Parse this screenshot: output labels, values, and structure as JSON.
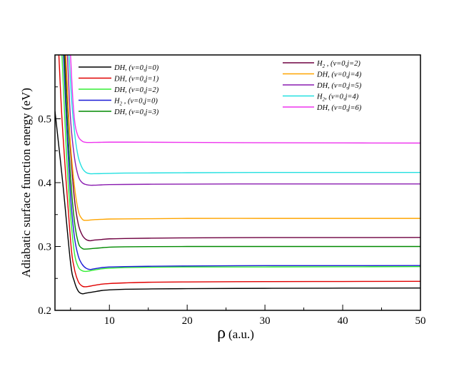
{
  "chart_data": {
    "type": "line",
    "xlabel_symbol": "ρ",
    "xlabel_unit": "(a.u.)",
    "ylabel": "Adiabatic surface function energy (eV)",
    "xlim": [
      3,
      50
    ],
    "ylim": [
      0.2,
      0.6
    ],
    "xticks": [
      10,
      20,
      30,
      40,
      50
    ],
    "xtick_labels": [
      "10",
      "20",
      "30",
      "40",
      "50"
    ],
    "yticks": [
      0.2,
      0.3,
      0.4,
      0.5
    ],
    "ytick_labels": [
      "0.2",
      "0.3",
      "0.4",
      "0.5"
    ],
    "grid": false,
    "legend_left": [
      {
        "prefix": "DH, ",
        "state": "(v=0,j=0)",
        "color": "#000000"
      },
      {
        "prefix": "DH, ",
        "state": "(v=0,j=1)",
        "color": "#e00000"
      },
      {
        "prefix": "DH, ",
        "state": "(v=0,j=2)",
        "color": "#33ee33"
      },
      {
        "prefix": "H",
        "sub": "2",
        "state": " , (v=0,j=0)",
        "color": "#1a1ad6"
      },
      {
        "prefix": "DH, ",
        "state": "(v=0,j=3)",
        "color": "#008a00"
      }
    ],
    "legend_right": [
      {
        "prefix": "H",
        "sub": "2",
        "state": " , (v=0,j=2)",
        "color": "#6e0040"
      },
      {
        "prefix": "DH, ",
        "state": "(v=0,j=4)",
        "color": "#ffa500"
      },
      {
        "prefix": "DH, ",
        "state": "(v=0,j=5)",
        "color": "#8a1cb0"
      },
      {
        "prefix": "H",
        "sub": "2",
        "state": ", (v=0,j=4)",
        "color": "#22e0e0"
      },
      {
        "prefix": "DH, ",
        "state": "(v=0,j=6)",
        "color": "#ee33ee"
      }
    ],
    "series": [
      {
        "name": "DH, (v=0,j=0)",
        "color": "#000000",
        "x": [
          3.0,
          4.0,
          5.0,
          5.5,
          6.0,
          6.5,
          7.0,
          8.0,
          9.0,
          10,
          12,
          15,
          20,
          30,
          40,
          50
        ],
        "y": [
          0.512,
          0.4,
          0.275,
          0.245,
          0.23,
          0.226,
          0.227,
          0.229,
          0.231,
          0.232,
          0.233,
          0.2335,
          0.234,
          0.2345,
          0.2348,
          0.235
        ]
      },
      {
        "name": "DH, (v=0,j=1)",
        "color": "#e00000",
        "x": [
          3.5,
          4.0,
          5.0,
          5.5,
          6.0,
          6.5,
          7.0,
          8.0,
          9.0,
          10,
          12,
          15,
          20,
          30,
          40,
          50
        ],
        "y": [
          0.6,
          0.48,
          0.31,
          0.265,
          0.245,
          0.238,
          0.237,
          0.239,
          0.241,
          0.242,
          0.243,
          0.244,
          0.2445,
          0.245,
          0.2452,
          0.2455
        ]
      },
      {
        "name": "DH, (v=0,j=2)",
        "color": "#33ee33",
        "x": [
          3.9,
          4.5,
          5.0,
          5.5,
          6.0,
          6.5,
          7.0,
          8.0,
          9.0,
          10,
          12,
          15,
          20,
          30,
          40,
          50
        ],
        "y": [
          0.6,
          0.44,
          0.35,
          0.29,
          0.268,
          0.262,
          0.261,
          0.263,
          0.265,
          0.266,
          0.267,
          0.2675,
          0.268,
          0.268,
          0.2682,
          0.2685
        ]
      },
      {
        "name": "H2 , (v=0,j=0)",
        "color": "#1a1ad6",
        "x": [
          4.1,
          4.5,
          5.0,
          5.5,
          6.0,
          6.5,
          7.0,
          7.5,
          8.0,
          9.0,
          10,
          12,
          15,
          20,
          30,
          40,
          50
        ],
        "y": [
          0.6,
          0.49,
          0.38,
          0.315,
          0.285,
          0.272,
          0.266,
          0.264,
          0.265,
          0.267,
          0.268,
          0.2685,
          0.269,
          0.2695,
          0.27,
          0.27,
          0.2702
        ]
      },
      {
        "name": "DH, (v=0,j=3)",
        "color": "#008a00",
        "x": [
          4.2,
          4.5,
          5.0,
          5.5,
          6.0,
          6.5,
          7.0,
          8.0,
          9.0,
          10,
          12,
          15,
          20,
          30,
          40,
          50
        ],
        "y": [
          0.6,
          0.52,
          0.41,
          0.34,
          0.306,
          0.297,
          0.296,
          0.297,
          0.298,
          0.299,
          0.2995,
          0.2998,
          0.3,
          0.3,
          0.3,
          0.3
        ]
      },
      {
        "name": "H2 , (v=0,j=2)",
        "color": "#6e0040",
        "x": [
          4.3,
          4.6,
          5.0,
          5.5,
          6.0,
          6.5,
          7.0,
          7.5,
          8.0,
          9.0,
          10,
          12,
          15,
          20,
          30,
          40,
          50
        ],
        "y": [
          0.6,
          0.53,
          0.45,
          0.375,
          0.335,
          0.318,
          0.311,
          0.309,
          0.31,
          0.311,
          0.312,
          0.3125,
          0.313,
          0.3135,
          0.314,
          0.314,
          0.3142
        ]
      },
      {
        "name": "DH, (v=0,j=4)",
        "color": "#ffa500",
        "x": [
          4.4,
          4.7,
          5.0,
          5.5,
          6.0,
          6.5,
          7.0,
          8.0,
          9.0,
          10,
          12,
          15,
          20,
          30,
          40,
          50
        ],
        "y": [
          0.6,
          0.52,
          0.46,
          0.395,
          0.356,
          0.343,
          0.341,
          0.342,
          0.3425,
          0.343,
          0.3432,
          0.3435,
          0.344,
          0.344,
          0.344,
          0.344
        ]
      },
      {
        "name": "DH, (v=0,j=5)",
        "color": "#8a1cb0",
        "x": [
          4.6,
          5.0,
          5.5,
          6.0,
          6.5,
          7.0,
          7.5,
          8.0,
          9.0,
          10,
          12,
          15,
          20,
          30,
          40,
          50
        ],
        "y": [
          0.6,
          0.5,
          0.44,
          0.41,
          0.4,
          0.397,
          0.396,
          0.396,
          0.3965,
          0.397,
          0.3972,
          0.3975,
          0.3977,
          0.398,
          0.398,
          0.398
        ]
      },
      {
        "name": "H2, (v=0,j=4)",
        "color": "#22e0e0",
        "x": [
          4.8,
          5.2,
          5.6,
          6.0,
          6.5,
          7.0,
          7.5,
          8.0,
          9.0,
          10,
          12,
          15,
          20,
          30,
          40,
          50
        ],
        "y": [
          0.6,
          0.52,
          0.47,
          0.44,
          0.423,
          0.416,
          0.414,
          0.414,
          0.4142,
          0.4145,
          0.415,
          0.4152,
          0.4155,
          0.416,
          0.416,
          0.416
        ]
      },
      {
        "name": "DH, (v=0,j=6)",
        "color": "#ee33ee",
        "x": [
          5.0,
          5.3,
          5.6,
          6.0,
          6.5,
          7.0,
          8.0,
          9.0,
          10,
          12,
          15,
          20,
          30,
          40,
          50
        ],
        "y": [
          0.6,
          0.53,
          0.49,
          0.472,
          0.465,
          0.463,
          0.463,
          0.4632,
          0.4634,
          0.4634,
          0.4633,
          0.463,
          0.4625,
          0.4622,
          0.462
        ]
      }
    ]
  }
}
